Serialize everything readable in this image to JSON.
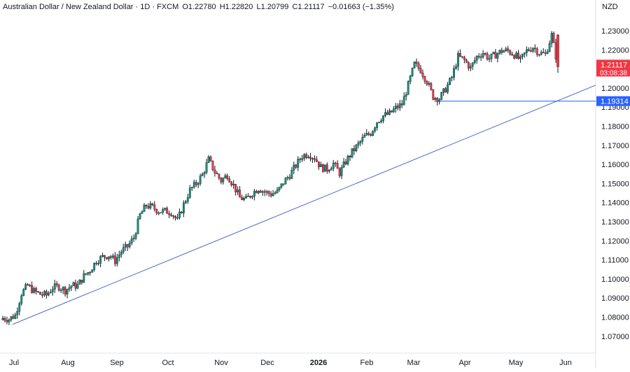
{
  "header": {
    "symbol_name": "Australian Dollar / New Zealand Dollar · 1D · FXCM",
    "open": "O1.22780",
    "high": "H1.22820",
    "low": "L1.20799",
    "close": "C1.21117",
    "change": "−0.01663 (−1.35%)",
    "currency": "NZD"
  },
  "colors": {
    "up": "#089981",
    "down": "#F23645",
    "trendline": "#4a6ec9",
    "level": "#2962FF",
    "wick": "#131722"
  },
  "chart_data": {
    "type": "candlestick",
    "y_ticks": [
      "1.07000",
      "1.08000",
      "1.09000",
      "1.10000",
      "1.11000",
      "1.12000",
      "1.13000",
      "1.14000",
      "1.15000",
      "1.16000",
      "1.17000",
      "1.18000",
      "1.19000",
      "1.20000",
      "1.21000",
      "1.22000",
      "1.23000"
    ],
    "x_ticks": [
      "Jul",
      "Aug",
      "Sep",
      "Oct",
      "Nov",
      "Dec",
      "2026",
      "Feb",
      "Mar",
      "Apr",
      "May",
      "Jun"
    ],
    "x_ticks_bold": [
      "2026"
    ],
    "ylim": [
      1.0648,
      1.2364
    ],
    "last_price": {
      "value": 1.21117,
      "label": "1.21117",
      "countdown": "03:08:38"
    },
    "level": {
      "value": 1.19314,
      "label": "1.19314",
      "start_month": "Mar",
      "start_day": 24
    },
    "trendline": {
      "points": [
        [
          1.0762,
          1.0762
        ],
        [
          1.2015,
          1.2015
        ]
      ],
      "start_label": "Jul",
      "end_label": "Jun"
    },
    "path": [
      [
        1.0795,
        "Jul"
      ],
      [
        1.079,
        ""
      ],
      [
        1.081,
        ""
      ],
      [
        1.0925,
        ""
      ],
      [
        1.0965,
        ""
      ],
      [
        1.0935,
        ""
      ],
      [
        1.092,
        ""
      ],
      [
        1.0915,
        "Aug"
      ],
      [
        1.0955,
        ""
      ],
      [
        1.096,
        ""
      ],
      [
        1.094,
        ""
      ],
      [
        1.0965,
        ""
      ],
      [
        1.0965,
        ""
      ],
      [
        1.1015,
        ""
      ],
      [
        1.1045,
        "Sep"
      ],
      [
        1.1095,
        ""
      ],
      [
        1.1115,
        ""
      ],
      [
        1.1125,
        ""
      ],
      [
        1.1095,
        ""
      ],
      [
        1.1145,
        ""
      ],
      [
        1.117,
        ""
      ],
      [
        1.1215,
        ""
      ],
      [
        1.1335,
        ""
      ],
      [
        1.1385,
        ""
      ],
      [
        1.1375,
        "Oct"
      ],
      [
        1.1355,
        ""
      ],
      [
        1.1355,
        ""
      ],
      [
        1.135,
        ""
      ],
      [
        1.1305,
        ""
      ],
      [
        1.139,
        ""
      ],
      [
        1.1465,
        ""
      ],
      [
        1.15,
        ""
      ],
      [
        1.1545,
        "Nov"
      ],
      [
        1.1625,
        ""
      ],
      [
        1.156,
        ""
      ],
      [
        1.1515,
        ""
      ],
      [
        1.1545,
        ""
      ],
      [
        1.149,
        ""
      ],
      [
        1.1425,
        ""
      ],
      [
        1.1415,
        ""
      ],
      [
        1.145,
        "Dec"
      ],
      [
        1.1475,
        ""
      ],
      [
        1.1455,
        ""
      ],
      [
        1.1445,
        ""
      ],
      [
        1.1455,
        ""
      ],
      [
        1.1505,
        ""
      ],
      [
        1.1545,
        ""
      ],
      [
        1.1595,
        ""
      ],
      [
        1.1645,
        "2026"
      ],
      [
        1.1655,
        ""
      ],
      [
        1.1635,
        ""
      ],
      [
        1.1585,
        ""
      ],
      [
        1.1575,
        ""
      ],
      [
        1.1605,
        ""
      ],
      [
        1.1555,
        ""
      ],
      [
        1.1615,
        "Feb"
      ],
      [
        1.1665,
        ""
      ],
      [
        1.1705,
        ""
      ],
      [
        1.1745,
        ""
      ],
      [
        1.1765,
        ""
      ],
      [
        1.1825,
        ""
      ],
      [
        1.1855,
        ""
      ],
      [
        1.1865,
        ""
      ],
      [
        1.1895,
        "Mar"
      ],
      [
        1.1915,
        ""
      ],
      [
        1.2015,
        ""
      ],
      [
        1.2125,
        ""
      ],
      [
        1.2095,
        ""
      ],
      [
        1.2035,
        ""
      ],
      [
        1.1955,
        ""
      ],
      [
        1.1945,
        ""
      ],
      [
        1.1995,
        ""
      ],
      [
        1.2055,
        "Apr"
      ],
      [
        1.2165,
        ""
      ],
      [
        1.2145,
        ""
      ],
      [
        1.2105,
        ""
      ],
      [
        1.2165,
        ""
      ],
      [
        1.2185,
        ""
      ],
      [
        1.2155,
        ""
      ],
      [
        1.2175,
        ""
      ],
      [
        1.2195,
        "May"
      ],
      [
        1.2195,
        ""
      ],
      [
        1.2175,
        ""
      ],
      [
        1.2145,
        ""
      ],
      [
        1.2195,
        ""
      ],
      [
        1.2215,
        ""
      ],
      [
        1.2185,
        ""
      ],
      [
        1.2175,
        ""
      ],
      [
        1.2278,
        ""
      ],
      [
        1.21117,
        ""
      ]
    ]
  }
}
